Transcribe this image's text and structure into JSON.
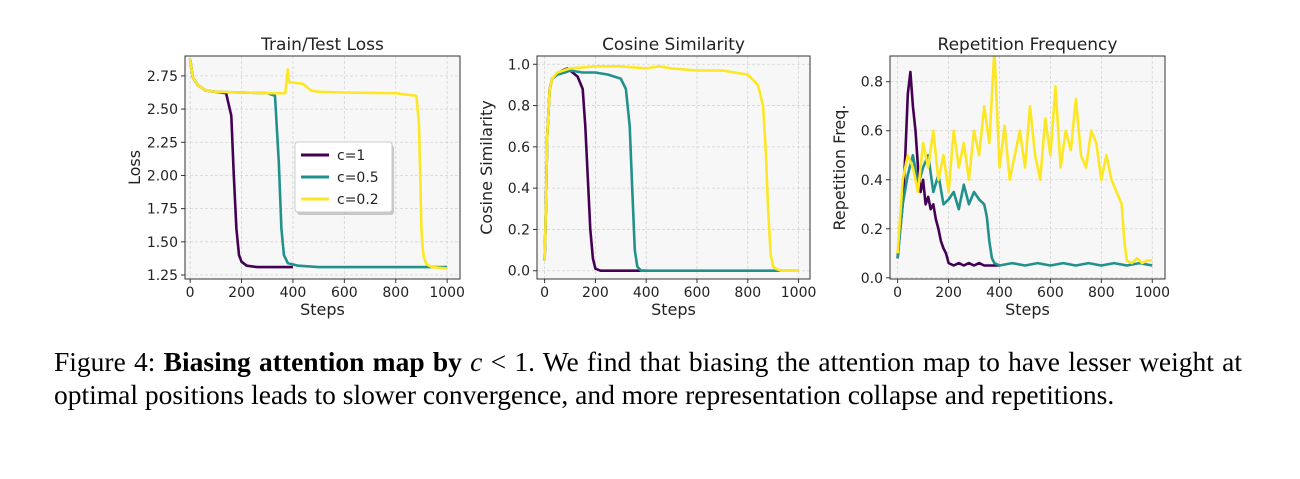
{
  "chart_data": [
    {
      "type": "line",
      "title": "Train/Test Loss",
      "xlabel": "Steps",
      "ylabel": "Loss",
      "xlim": [
        -20,
        1050
      ],
      "ylim": [
        1.22,
        2.9
      ],
      "xticks": [
        0,
        200,
        400,
        600,
        800,
        1000
      ],
      "xtick_labels": [
        "0",
        "200",
        "400",
        "600",
        "800",
        "1000"
      ],
      "yticks": [
        1.25,
        1.5,
        1.75,
        2.0,
        2.25,
        2.5,
        2.75
      ],
      "ytick_labels": [
        "1.25",
        "1.50",
        "1.75",
        "2.00",
        "2.25",
        "2.50",
        "2.75"
      ],
      "grid": true,
      "legend": "center",
      "legend_entries": [
        "c=1",
        "c=0.5",
        "c=0.2"
      ],
      "series": [
        {
          "name": "c=1",
          "color": "#440154",
          "x": [
            0,
            10,
            30,
            60,
            100,
            140,
            160,
            170,
            180,
            190,
            200,
            220,
            260,
            320,
            400
          ],
          "y": [
            2.88,
            2.74,
            2.68,
            2.64,
            2.63,
            2.62,
            2.45,
            2.0,
            1.6,
            1.4,
            1.35,
            1.32,
            1.31,
            1.31,
            1.31
          ]
        },
        {
          "name": "c=0.5",
          "color": "#21918c",
          "x": [
            0,
            10,
            30,
            60,
            100,
            200,
            300,
            330,
            345,
            355,
            365,
            380,
            420,
            500,
            700,
            1000
          ],
          "y": [
            2.88,
            2.74,
            2.68,
            2.64,
            2.63,
            2.625,
            2.62,
            2.6,
            2.1,
            1.6,
            1.4,
            1.34,
            1.32,
            1.31,
            1.31,
            1.31
          ]
        },
        {
          "name": "c=0.2",
          "color": "#fde725",
          "x": [
            0,
            10,
            30,
            60,
            100,
            200,
            300,
            370,
            375,
            380,
            383,
            387,
            400,
            440,
            470,
            500,
            600,
            800,
            880,
            890,
            895,
            900,
            905,
            910,
            920,
            940,
            1000
          ],
          "y": [
            2.88,
            2.74,
            2.68,
            2.64,
            2.63,
            2.625,
            2.62,
            2.62,
            2.7,
            2.8,
            2.72,
            2.7,
            2.7,
            2.69,
            2.64,
            2.63,
            2.625,
            2.62,
            2.6,
            2.4,
            2.0,
            1.6,
            1.45,
            1.38,
            1.33,
            1.31,
            1.3
          ]
        }
      ]
    },
    {
      "type": "line",
      "title": "Cosine Similarity",
      "xlabel": "Steps",
      "ylabel": "Cosine Similarity",
      "xlim": [
        -30,
        1045
      ],
      "ylim": [
        -0.04,
        1.04
      ],
      "xticks": [
        0,
        200,
        400,
        600,
        800,
        1000
      ],
      "xtick_labels": [
        "0",
        "200",
        "400",
        "600",
        "800",
        "1000"
      ],
      "yticks": [
        0.0,
        0.2,
        0.4,
        0.6,
        0.8,
        1.0
      ],
      "ytick_labels": [
        "0.0",
        "0.2",
        "0.4",
        "0.6",
        "0.8",
        "1.0"
      ],
      "grid": true,
      "series": [
        {
          "name": "c=1",
          "color": "#440154",
          "x": [
            0,
            5,
            10,
            20,
            30,
            50,
            70,
            90,
            110,
            130,
            150,
            160,
            170,
            180,
            190,
            200,
            220,
            300,
            400
          ],
          "y": [
            0.05,
            0.3,
            0.65,
            0.88,
            0.93,
            0.95,
            0.97,
            0.98,
            0.96,
            0.94,
            0.88,
            0.7,
            0.45,
            0.2,
            0.06,
            0.01,
            0.0,
            0.0,
            0.0
          ]
        },
        {
          "name": "c=0.5",
          "color": "#21918c",
          "x": [
            0,
            5,
            10,
            20,
            30,
            50,
            80,
            100,
            150,
            200,
            250,
            300,
            320,
            335,
            345,
            355,
            365,
            380,
            500,
            700,
            900,
            1000
          ],
          "y": [
            0.05,
            0.3,
            0.65,
            0.88,
            0.93,
            0.95,
            0.96,
            0.97,
            0.96,
            0.96,
            0.95,
            0.93,
            0.88,
            0.7,
            0.4,
            0.1,
            0.02,
            0.0,
            0.0,
            0.0,
            0.0,
            0.0
          ]
        },
        {
          "name": "c=0.2",
          "color": "#fde725",
          "x": [
            0,
            5,
            10,
            20,
            30,
            50,
            100,
            200,
            300,
            400,
            450,
            500,
            600,
            700,
            800,
            840,
            860,
            870,
            880,
            890,
            900,
            910,
            930,
            1000
          ],
          "y": [
            0.05,
            0.3,
            0.65,
            0.88,
            0.93,
            0.96,
            0.98,
            0.99,
            0.99,
            0.98,
            0.99,
            0.98,
            0.97,
            0.97,
            0.95,
            0.9,
            0.8,
            0.6,
            0.3,
            0.08,
            0.02,
            0.01,
            0.0,
            0.0
          ]
        }
      ]
    },
    {
      "type": "line",
      "title": "Repetition Frequency",
      "xlabel": "Steps",
      "ylabel": "Repetition Freq.",
      "xlim": [
        -30,
        1050
      ],
      "ylim": [
        -0.005,
        0.905
      ],
      "xticks": [
        0,
        200,
        400,
        600,
        800,
        1000
      ],
      "xtick_labels": [
        "0",
        "200",
        "400",
        "600",
        "800",
        "1000"
      ],
      "yticks": [
        0.0,
        0.2,
        0.4,
        0.6,
        0.8
      ],
      "ytick_labels": [
        "0.0",
        "0.2",
        "0.4",
        "0.6",
        "0.8"
      ],
      "grid": true,
      "series": [
        {
          "name": "c=1",
          "color": "#440154",
          "x": [
            0,
            10,
            20,
            30,
            40,
            50,
            60,
            70,
            80,
            90,
            100,
            110,
            120,
            130,
            140,
            150,
            160,
            170,
            180,
            190,
            200,
            220,
            240,
            260,
            280,
            300,
            320,
            340,
            360,
            380,
            400
          ],
          "y": [
            0.08,
            0.2,
            0.3,
            0.5,
            0.75,
            0.84,
            0.7,
            0.6,
            0.45,
            0.35,
            0.4,
            0.3,
            0.33,
            0.28,
            0.3,
            0.24,
            0.2,
            0.15,
            0.12,
            0.1,
            0.06,
            0.05,
            0.06,
            0.05,
            0.06,
            0.05,
            0.06,
            0.05,
            0.05,
            0.05,
            0.05
          ]
        },
        {
          "name": "c=0.5",
          "color": "#21918c",
          "x": [
            0,
            20,
            40,
            60,
            80,
            100,
            120,
            140,
            160,
            180,
            200,
            220,
            240,
            260,
            280,
            300,
            320,
            340,
            350,
            360,
            370,
            380,
            400,
            450,
            500,
            550,
            600,
            650,
            700,
            750,
            800,
            850,
            900,
            950,
            1000
          ],
          "y": [
            0.08,
            0.3,
            0.42,
            0.5,
            0.38,
            0.45,
            0.5,
            0.35,
            0.42,
            0.3,
            0.32,
            0.35,
            0.28,
            0.38,
            0.3,
            0.35,
            0.32,
            0.3,
            0.25,
            0.15,
            0.08,
            0.06,
            0.05,
            0.06,
            0.05,
            0.06,
            0.05,
            0.06,
            0.05,
            0.06,
            0.05,
            0.06,
            0.05,
            0.06,
            0.05
          ]
        },
        {
          "name": "c=0.2",
          "color": "#fde725",
          "x": [
            0,
            20,
            40,
            60,
            80,
            100,
            120,
            140,
            160,
            180,
            200,
            220,
            240,
            260,
            280,
            300,
            320,
            340,
            360,
            380,
            400,
            420,
            440,
            460,
            480,
            500,
            520,
            540,
            560,
            580,
            600,
            620,
            640,
            660,
            680,
            700,
            720,
            740,
            760,
            780,
            800,
            820,
            840,
            860,
            880,
            890,
            900,
            920,
            940,
            960,
            980,
            1000
          ],
          "y": [
            0.1,
            0.4,
            0.5,
            0.45,
            0.35,
            0.55,
            0.45,
            0.6,
            0.4,
            0.5,
            0.35,
            0.6,
            0.45,
            0.55,
            0.4,
            0.6,
            0.5,
            0.7,
            0.55,
            0.93,
            0.45,
            0.62,
            0.4,
            0.5,
            0.6,
            0.45,
            0.7,
            0.5,
            0.4,
            0.65,
            0.5,
            0.78,
            0.45,
            0.6,
            0.52,
            0.73,
            0.5,
            0.45,
            0.6,
            0.55,
            0.4,
            0.5,
            0.4,
            0.35,
            0.3,
            0.15,
            0.07,
            0.06,
            0.08,
            0.06,
            0.07,
            0.07
          ]
        }
      ]
    }
  ],
  "caption": {
    "lead": "Figure 4:",
    "bold": "Biasing attention map by",
    "math": "c",
    "math_rest": " < 1",
    "after_math": ".",
    "body": "We find that biasing the attention map to have lesser weight at optimal positions leads to slower convergence, and more representation collapse and repetitions."
  }
}
